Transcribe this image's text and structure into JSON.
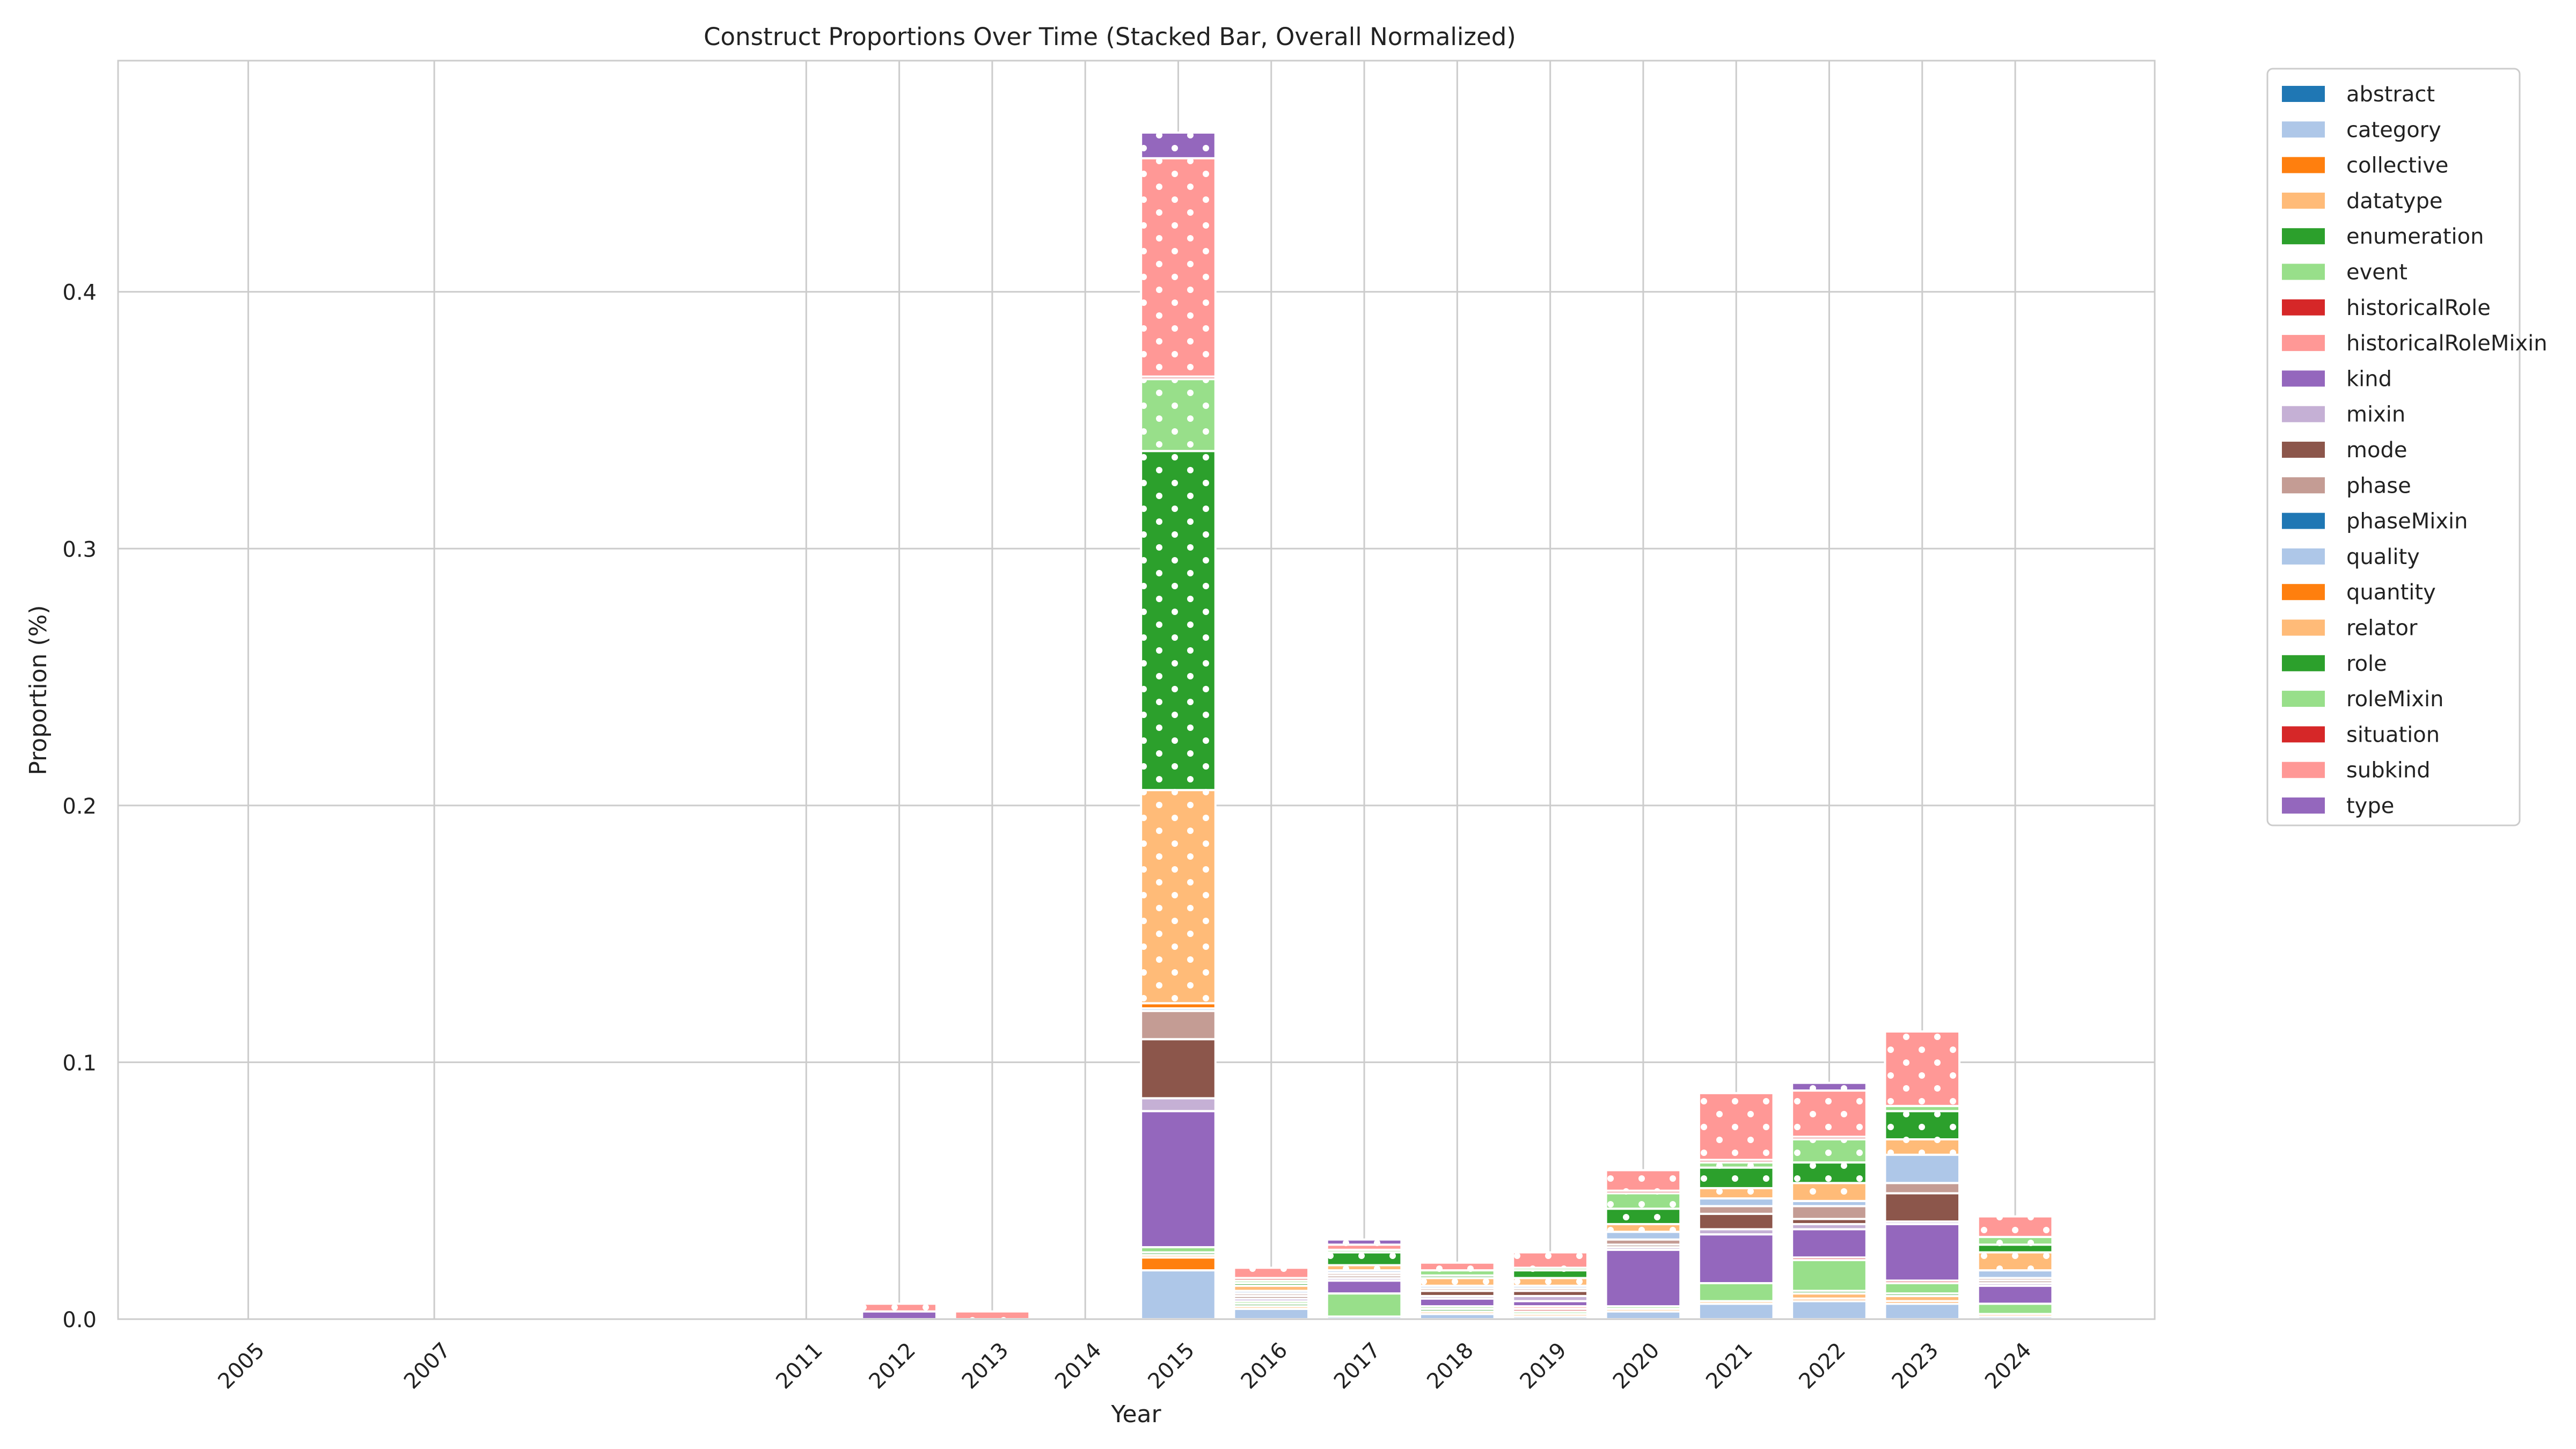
{
  "chart_data": {
    "type": "bar",
    "stacked": true,
    "title": "Construct Proportions Over Time (Stacked Bar, Overall Normalized)",
    "xlabel": "Year",
    "ylabel": "Proportion (%)",
    "ylim": [
      0,
      0.49
    ],
    "y_ticks": [
      "0.0",
      "0.1",
      "0.2",
      "0.3",
      "0.4"
    ],
    "y_tick_values": [
      0,
      0.1,
      0.2,
      0.3,
      0.4
    ],
    "grid": true,
    "legend_position": "outside-top-right",
    "categories": [
      "2005",
      "2007",
      "2011",
      "2012",
      "2013",
      "2014",
      "2015",
      "2016",
      "2017",
      "2018",
      "2019",
      "2020",
      "2021",
      "2022",
      "2023",
      "2024"
    ],
    "category_x": [
      2005,
      2007,
      2011,
      2012,
      2013,
      2014,
      2015,
      2016,
      2017,
      2018,
      2019,
      2020,
      2021,
      2022,
      2023,
      2024
    ],
    "xlim": [
      2003.6,
      2025.5
    ],
    "series": [
      {
        "name": "abstract",
        "color": "#1f77b4",
        "values": [
          0,
          0,
          0,
          0,
          0,
          0,
          0,
          0,
          0,
          0,
          0,
          0,
          0,
          0,
          0,
          0
        ]
      },
      {
        "name": "category",
        "color": "#aec7e8",
        "values": [
          0,
          0,
          0,
          0,
          0,
          0,
          0.019,
          0.004,
          0.001,
          0.002,
          0.001,
          0.003,
          0.006,
          0.007,
          0.006,
          0.001
        ]
      },
      {
        "name": "collective",
        "color": "#ff7f0e",
        "values": [
          0,
          0,
          0,
          0,
          0,
          0,
          0.005,
          0,
          0,
          0,
          0,
          0,
          0,
          0.001,
          0.001,
          0
        ]
      },
      {
        "name": "datatype",
        "color": "#ffbb78",
        "values": [
          0,
          0,
          0,
          0,
          0,
          0,
          0.001,
          0.001,
          0,
          0.001,
          0.001,
          0.001,
          0.001,
          0.002,
          0.002,
          0.001
        ]
      },
      {
        "name": "enumeration",
        "color": "#2ca02c",
        "values": [
          0,
          0,
          0,
          0,
          0,
          0,
          0.001,
          0.001,
          0,
          0.001,
          0,
          0,
          0,
          0.001,
          0.001,
          0
        ]
      },
      {
        "name": "event",
        "color": "#98df8a",
        "values": [
          0,
          0,
          0,
          0,
          0,
          0,
          0.002,
          0.001,
          0.009,
          0.001,
          0.001,
          0.001,
          0.007,
          0.012,
          0.004,
          0.004
        ]
      },
      {
        "name": "historicalRole",
        "color": "#d62728",
        "values": [
          0,
          0,
          0,
          0,
          0,
          0,
          0,
          0,
          0,
          0,
          0.001,
          0,
          0,
          0.001,
          0.001,
          0
        ]
      },
      {
        "name": "historicalRoleMixin",
        "color": "#ff9896",
        "values": [
          0,
          0,
          0,
          0,
          0,
          0,
          0,
          0,
          0,
          0,
          0.001,
          0,
          0,
          0,
          0,
          0
        ]
      },
      {
        "name": "kind",
        "color": "#9467bd",
        "values": [
          0,
          0,
          0,
          0.003,
          0,
          0,
          0.053,
          0.001,
          0.005,
          0.003,
          0.002,
          0.022,
          0.019,
          0.011,
          0.022,
          0.007
        ]
      },
      {
        "name": "mixin",
        "color": "#c5b0d5",
        "values": [
          0,
          0,
          0,
          0,
          0,
          0,
          0.005,
          0,
          0.001,
          0.001,
          0.002,
          0.001,
          0.002,
          0.002,
          0.001,
          0.001
        ]
      },
      {
        "name": "mode",
        "color": "#8c564b",
        "values": [
          0,
          0,
          0,
          0,
          0,
          0,
          0.023,
          0.001,
          0.001,
          0.002,
          0.002,
          0.001,
          0.006,
          0.002,
          0.011,
          0.001
        ]
      },
      {
        "name": "phase",
        "color": "#c49c94",
        "values": [
          0,
          0,
          0,
          0,
          0,
          0,
          0.011,
          0.001,
          0.001,
          0.001,
          0.001,
          0.002,
          0.003,
          0.005,
          0.004,
          0.001
        ]
      },
      {
        "name": "phaseMixin",
        "color": "#1f77b4",
        "values": [
          0,
          0,
          0,
          0,
          0,
          0,
          0,
          0,
          0,
          0,
          0,
          0,
          0,
          0,
          0,
          0
        ]
      },
      {
        "name": "quality",
        "color": "#aec7e8",
        "values": [
          0,
          0,
          0,
          0,
          0,
          0,
          0.001,
          0.001,
          0.001,
          0.001,
          0.001,
          0.003,
          0.003,
          0.002,
          0.011,
          0.003
        ]
      },
      {
        "name": "quantity",
        "color": "#ff7f0e",
        "values": [
          0,
          0,
          0,
          0,
          0,
          0,
          0.002,
          0,
          0,
          0,
          0,
          0,
          0,
          0,
          0,
          0
        ]
      },
      {
        "name": "relator",
        "color": "#ffbb78",
        "values": [
          0,
          0,
          0,
          0,
          0,
          0,
          0.083,
          0.002,
          0.002,
          0.003,
          0.003,
          0.003,
          0.004,
          0.007,
          0.006,
          0.007
        ]
      },
      {
        "name": "role",
        "color": "#2ca02c",
        "values": [
          0,
          0,
          0,
          0,
          0,
          0,
          0.132,
          0.001,
          0.005,
          0.001,
          0.003,
          0.006,
          0.008,
          0.008,
          0.011,
          0.003
        ]
      },
      {
        "name": "roleMixin",
        "color": "#98df8a",
        "values": [
          0,
          0,
          0,
          0,
          0,
          0,
          0.028,
          0.001,
          0.001,
          0.002,
          0.001,
          0.006,
          0.002,
          0.009,
          0.002,
          0.003
        ]
      },
      {
        "name": "situation",
        "color": "#d62728",
        "values": [
          0,
          0,
          0,
          0,
          0,
          0,
          0.001,
          0.001,
          0,
          0,
          0,
          0.001,
          0.001,
          0.001,
          0,
          0
        ]
      },
      {
        "name": "subkind",
        "color": "#ff9896",
        "values": [
          0,
          0,
          0,
          0.003,
          0.003,
          0,
          0.085,
          0.004,
          0.002,
          0.003,
          0.006,
          0.008,
          0.026,
          0.018,
          0.029,
          0.008
        ]
      },
      {
        "name": "type",
        "color": "#9467bd",
        "values": [
          0,
          0,
          0,
          0,
          0,
          0,
          0.01,
          0,
          0.002,
          0,
          0,
          0,
          0,
          0.003,
          0,
          0
        ]
      }
    ]
  }
}
